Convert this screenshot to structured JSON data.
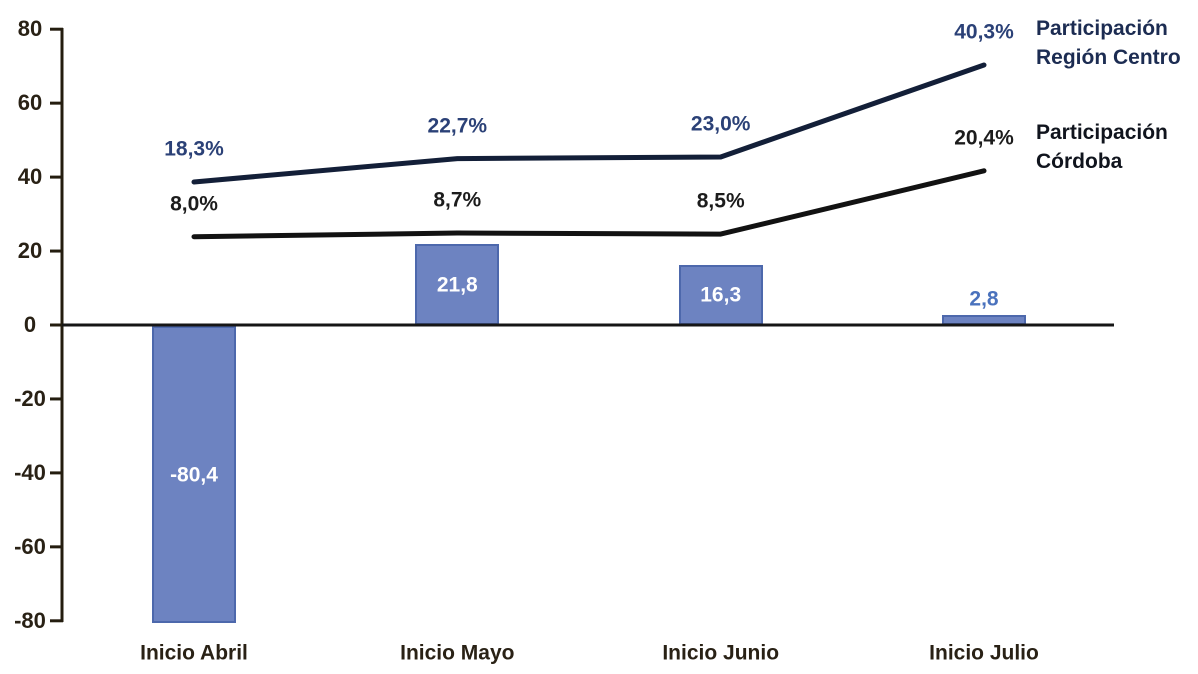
{
  "chart_data": {
    "type": "bar+line",
    "title": "",
    "categories": [
      "Inicio Abril",
      "Inicio Mayo",
      "Inicio Junio",
      "Inicio Julio"
    ],
    "bars": {
      "values": [
        -80.4,
        21.8,
        16.3,
        2.8
      ],
      "labels": [
        "-80,4",
        "21,8",
        "16,3",
        "2,8"
      ],
      "fill_color": "#6d83c1",
      "border_color": "#4d68ac",
      "label_color_inside": "#ffffff",
      "label_color_outside": "#4a72bd"
    },
    "lines": [
      {
        "name": "Participación Región Centro",
        "values": [
          18.3,
          22.7,
          23.0,
          40.3
        ],
        "labels": [
          "18,3%",
          "22,7%",
          "23,0%",
          "40,3%"
        ],
        "color": "#131f38",
        "label_color": "#2b4177"
      },
      {
        "name": "Participación Córdoba",
        "values": [
          8.0,
          8.7,
          8.5,
          20.4
        ],
        "labels": [
          "8,0%",
          "8,7%",
          "8,5%",
          "20,4%"
        ],
        "color": "#121212",
        "label_color": "#1c1c1c"
      }
    ],
    "y_axis": {
      "ticks": [
        80,
        60,
        40,
        20,
        0,
        -20,
        -40,
        -60,
        -80
      ],
      "range": [
        -80,
        80
      ],
      "axis_color": "#241d0f"
    },
    "grid": false,
    "legend_position": "right"
  },
  "legend": {
    "entries": [
      {
        "line1": "Participación",
        "line2": "Región Centro",
        "color": "#1c2c52"
      },
      {
        "line1": "Participación",
        "line2": "Córdoba",
        "color": "#10141d"
      }
    ]
  }
}
